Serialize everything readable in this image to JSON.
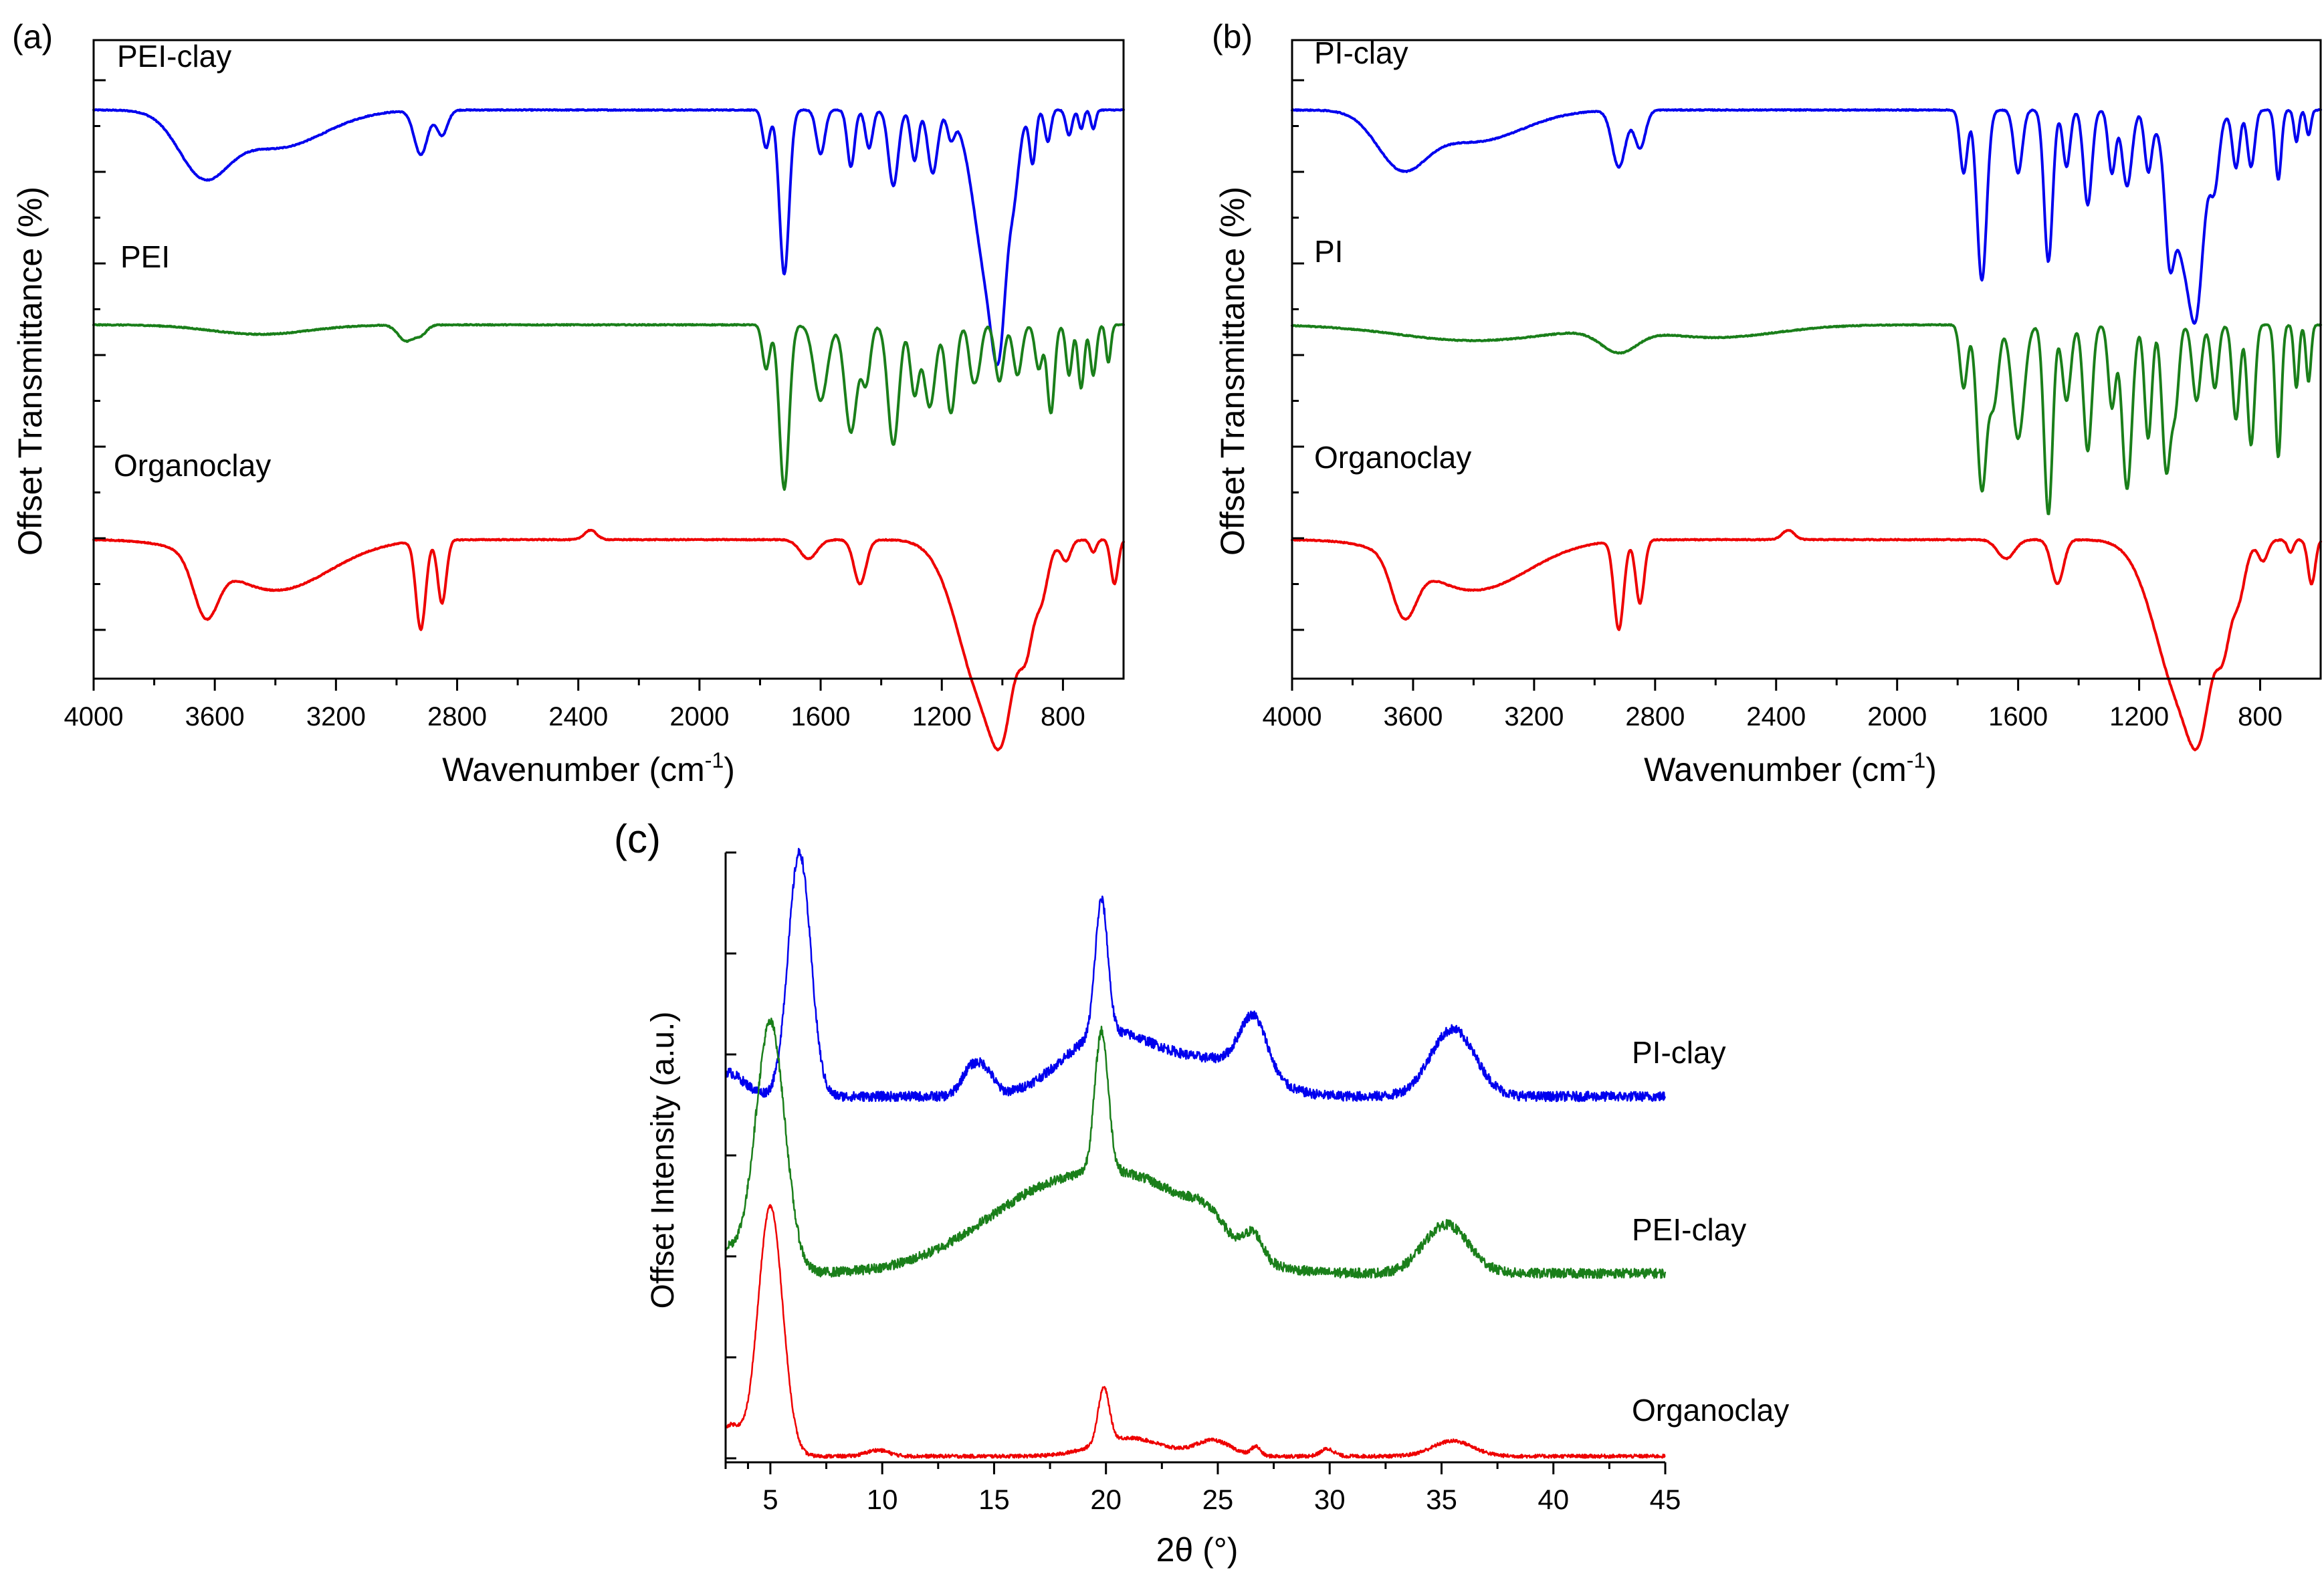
{
  "figure": {
    "colors": {
      "blue": "#0000ee",
      "green": "#1a7f1a",
      "red": "#ee0000"
    }
  },
  "chart_data": [
    {
      "panel_label": "(a)",
      "type": "line",
      "title": "",
      "xlabel_main": "Wavenumber (cm",
      "xlabel_sup": "-1",
      "xlabel_end": ")",
      "ylabel": "Offset Transmittance (%)",
      "xlim": [
        4000,
        600
      ],
      "x_reversed": true,
      "x_ticks": [
        "4000",
        "3600",
        "3200",
        "2800",
        "2400",
        "2000",
        "1600",
        "1200",
        "800"
      ],
      "y_tick_count": 7,
      "y_ticks_labeled": false,
      "ylim": [
        0,
        100
      ],
      "series": [
        {
          "name": "PEI-clay",
          "color": "#0000ee",
          "baseline": 90,
          "bands": [
            [
              3640,
              9,
              80
            ],
            [
              3400,
              6,
              160
            ],
            [
              2920,
              7,
              22
            ],
            [
              2850,
              4,
              18
            ],
            [
              1780,
              6,
              12
            ],
            [
              1720,
              26,
              16
            ],
            [
              1600,
              7,
              14
            ],
            [
              1500,
              9,
              12
            ],
            [
              1440,
              6,
              12
            ],
            [
              1360,
              12,
              16
            ],
            [
              1290,
              8,
              12
            ],
            [
              1230,
              10,
              16
            ],
            [
              1170,
              4,
              12
            ],
            [
              1040,
              28,
              50
            ],
            [
              1010,
              16,
              22
            ],
            [
              960,
              6,
              15
            ],
            [
              900,
              8,
              10
            ],
            [
              850,
              5,
              10
            ],
            [
              780,
              4,
              10
            ],
            [
              740,
              3,
              8
            ],
            [
              700,
              3,
              8
            ]
          ]
        },
        {
          "name": "PEI",
          "color": "#1a7f1a",
          "baseline": 56,
          "bands": [
            [
              3450,
              1.5,
              160
            ],
            [
              2970,
              2.5,
              25
            ],
            [
              2920,
              1.5,
              20
            ],
            [
              1780,
              7,
              12
            ],
            [
              1720,
              26,
              16
            ],
            [
              1600,
              12,
              22
            ],
            [
              1500,
              17,
              20
            ],
            [
              1450,
              9,
              14
            ],
            [
              1360,
              19,
              18
            ],
            [
              1290,
              11,
              14
            ],
            [
              1240,
              13,
              18
            ],
            [
              1170,
              14,
              16
            ],
            [
              1100,
              7,
              12
            ],
            [
              1080,
              6,
              12
            ],
            [
              1010,
              9,
              14
            ],
            [
              950,
              8,
              14
            ],
            [
              880,
              7,
              12
            ],
            [
              840,
              14,
              12
            ],
            [
              780,
              8,
              10
            ],
            [
              740,
              10,
              10
            ],
            [
              700,
              8,
              10
            ],
            [
              650,
              6,
              8
            ]
          ]
        },
        {
          "name": "Organoclay",
          "color": "#ee0000",
          "baseline": 22,
          "bands": [
            [
              3630,
              9,
              40
            ],
            [
              3400,
              8,
              180
            ],
            [
              2920,
              14,
              16
            ],
            [
              2850,
              10,
              14
            ],
            [
              2360,
              -1.5,
              20
            ],
            [
              1640,
              3,
              28
            ],
            [
              1470,
              7,
              20
            ],
            [
              1050,
              26,
              90
            ],
            [
              1000,
              10,
              35
            ],
            [
              920,
              9,
              22
            ],
            [
              870,
              6,
              20
            ],
            [
              790,
              3,
              15
            ],
            [
              700,
              2,
              10
            ],
            [
              630,
              7,
              12
            ]
          ]
        }
      ]
    },
    {
      "panel_label": "(b)",
      "type": "line",
      "title": "",
      "xlabel_main": "Wavenumber (cm",
      "xlabel_sup": "-1",
      "xlabel_end": ")",
      "ylabel": "Offset Transmittance (%)",
      "xlim": [
        4000,
        600
      ],
      "x_reversed": true,
      "x_ticks": [
        "4000",
        "3600",
        "3200",
        "2800",
        "2400",
        "2000",
        "1600",
        "1200",
        "800"
      ],
      "y_tick_count": 7,
      "y_ticks_labeled": false,
      "ylim": [
        0,
        100
      ],
      "series": [
        {
          "name": "PI-clay",
          "color": "#0000ee",
          "baseline": 90,
          "bands": [
            [
              3640,
              8,
              80
            ],
            [
              3400,
              5,
              160
            ],
            [
              2920,
              9,
              22
            ],
            [
              2850,
              6,
              18
            ],
            [
              1780,
              10,
              12
            ],
            [
              1720,
              27,
              16
            ],
            [
              1600,
              10,
              14
            ],
            [
              1500,
              24,
              14
            ],
            [
              1440,
              9,
              12
            ],
            [
              1370,
              15,
              14
            ],
            [
              1290,
              10,
              12
            ],
            [
              1240,
              12,
              16
            ],
            [
              1170,
              9,
              12
            ],
            [
              1100,
              13,
              14
            ],
            [
              1040,
              25,
              50
            ],
            [
              1010,
              12,
              20
            ],
            [
              950,
              8,
              14
            ],
            [
              880,
              9,
              12
            ],
            [
              830,
              9,
              12
            ],
            [
              740,
              11,
              10
            ],
            [
              680,
              5,
              8
            ],
            [
              640,
              4,
              8
            ]
          ]
        },
        {
          "name": "PI",
          "color": "#1a7f1a",
          "baseline": 56,
          "bands": [
            [
              3400,
              2.5,
              250
            ],
            [
              2920,
              3.5,
              60
            ],
            [
              2600,
              2,
              200
            ],
            [
              1780,
              10,
              12
            ],
            [
              1720,
              26,
              16
            ],
            [
              1680,
              12,
              15
            ],
            [
              1600,
              18,
              20
            ],
            [
              1500,
              30,
              14
            ],
            [
              1440,
              12,
              14
            ],
            [
              1370,
              20,
              14
            ],
            [
              1290,
              13,
              12
            ],
            [
              1240,
              26,
              16
            ],
            [
              1170,
              18,
              12
            ],
            [
              1110,
              23,
              14
            ],
            [
              1080,
              12,
              12
            ],
            [
              1010,
              12,
              14
            ],
            [
              950,
              10,
              12
            ],
            [
              880,
              15,
              12
            ],
            [
              830,
              19,
              12
            ],
            [
              740,
              21,
              10
            ],
            [
              680,
              10,
              8
            ],
            [
              640,
              9,
              8
            ]
          ]
        },
        {
          "name": "Organoclay",
          "color": "#ee0000",
          "baseline": 22,
          "bands": [
            [
              3630,
              9,
              40
            ],
            [
              3400,
              8,
              180
            ],
            [
              2920,
              14,
              16
            ],
            [
              2850,
              10,
              14
            ],
            [
              2360,
              -1.5,
              20
            ],
            [
              1640,
              3,
              28
            ],
            [
              1470,
              7,
              20
            ],
            [
              1050,
              26,
              90
            ],
            [
              1000,
              10,
              35
            ],
            [
              920,
              9,
              22
            ],
            [
              870,
              6,
              20
            ],
            [
              790,
              3,
              15
            ],
            [
              700,
              2,
              10
            ],
            [
              630,
              7,
              12
            ]
          ]
        }
      ]
    },
    {
      "panel_label": "(c)",
      "type": "line",
      "title": "",
      "xlabel": "2θ (°)",
      "ylabel": "Offset Intensity (a.u.)",
      "xlim": [
        3,
        45
      ],
      "x_ticks": [
        5,
        10,
        15,
        20,
        25,
        30,
        35,
        40,
        45
      ],
      "y_tick_count": 7,
      "y_ticks_labeled": false,
      "ylim": [
        0,
        100
      ],
      "series": [
        {
          "name": "PI-clay",
          "color": "#0000ee",
          "baseline": 60,
          "peaks": [
            [
              3.0,
              4,
              0.8
            ],
            [
              6.3,
              40,
              0.5
            ],
            [
              13.9,
              4,
              0.4
            ],
            [
              14.6,
              4,
              0.4
            ],
            [
              19.8,
              22,
              0.28
            ],
            [
              19.6,
              7,
              1.8
            ],
            [
              22.5,
              6,
              2.5
            ],
            [
              26.6,
              9,
              0.6
            ],
            [
              26.0,
              3,
              1.5
            ],
            [
              35.5,
              11,
              1.0
            ]
          ]
        },
        {
          "name": "PEI-clay",
          "color": "#1a7f1a",
          "baseline": 31,
          "peaks": [
            [
              3.0,
              4,
              0.8
            ],
            [
              5.0,
              41,
              0.65
            ],
            [
              19.8,
              23,
              0.3
            ],
            [
              18.0,
              14,
              3.5
            ],
            [
              22.5,
              8,
              2.5
            ],
            [
              24.5,
              3,
              0.8
            ],
            [
              26.6,
              4,
              0.4
            ],
            [
              35.2,
              8,
              1.0
            ]
          ]
        },
        {
          "name": "Organoclay",
          "color": "#ee0000",
          "baseline": 1,
          "peaks": [
            [
              5.0,
              41,
              0.55
            ],
            [
              3.2,
              5,
              0.5
            ],
            [
              9.8,
              1,
              0.5
            ],
            [
              19.9,
              9,
              0.25
            ],
            [
              21.0,
              3,
              1.5
            ],
            [
              24.8,
              2.5,
              0.8
            ],
            [
              26.7,
              1.5,
              0.2
            ],
            [
              29.9,
              1.2,
              0.3
            ],
            [
              35.5,
              2.5,
              0.9
            ]
          ]
        }
      ]
    }
  ]
}
